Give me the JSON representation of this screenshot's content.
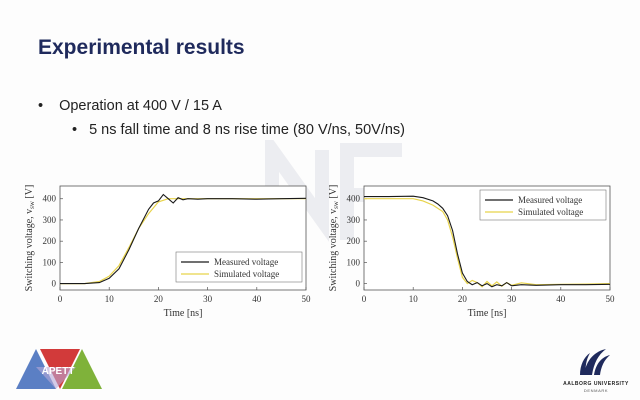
{
  "slide": {
    "title": "Experimental results",
    "bullet_1": "Operation at 400 V / 15 A",
    "bullet_2": "5 ns fall time and 8 ns rise time (80 V/ns, 50V/ns)",
    "bullet_marker": "•"
  },
  "logos": {
    "left_label": "APETT",
    "right_name": "AALBORG UNIVERSITY",
    "right_country": "DENMARK"
  },
  "colors": {
    "title": "#1f2a5c",
    "measured": "#1a1a1a",
    "simulated": "#e8d34a",
    "logo_blue": "#5b7fc4",
    "logo_red": "#d23a3a",
    "logo_green": "#7fb23a"
  },
  "chart_data": [
    {
      "type": "line",
      "title": "",
      "xlabel": "Time [ns]",
      "ylabel": "Switching voltage, v_sw [V]",
      "ylabel_main": "Switching voltage, v",
      "ylabel_sub": "sw",
      "ylabel_unit": " [V]",
      "xlim": [
        0,
        50
      ],
      "ylim": [
        -30,
        460
      ],
      "xticks": [
        0,
        10,
        20,
        30,
        40,
        50
      ],
      "yticks": [
        0,
        100,
        200,
        300,
        400
      ],
      "grid": false,
      "legend_position": "bottom-right",
      "series": [
        {
          "name": "Measured voltage",
          "x": [
            0,
            5,
            8,
            10,
            12,
            14,
            16,
            18,
            19,
            20,
            21,
            22,
            23,
            24,
            25,
            26,
            28,
            30,
            35,
            40,
            45,
            50
          ],
          "y": [
            0,
            0,
            5,
            25,
            70,
            160,
            260,
            350,
            380,
            390,
            420,
            400,
            380,
            405,
            395,
            400,
            398,
            400,
            400,
            398,
            400,
            402
          ]
        },
        {
          "name": "Simulated voltage",
          "x": [
            0,
            5,
            8,
            10,
            12,
            14,
            16,
            18,
            20,
            22,
            24,
            26,
            28,
            30,
            35,
            40,
            45,
            50
          ],
          "y": [
            0,
            0,
            10,
            35,
            85,
            170,
            260,
            330,
            385,
            400,
            400,
            400,
            400,
            400,
            400,
            400,
            400,
            400
          ]
        }
      ]
    },
    {
      "type": "line",
      "title": "",
      "xlabel": "Time [ns]",
      "ylabel": "Switching voltage, v_sw [V]",
      "ylabel_main": "Switching voltage, v",
      "ylabel_sub": "sw",
      "ylabel_unit": " [V]",
      "xlim": [
        0,
        50
      ],
      "ylim": [
        -30,
        460
      ],
      "xticks": [
        0,
        10,
        20,
        30,
        40,
        50
      ],
      "yticks": [
        0,
        100,
        200,
        300,
        400
      ],
      "grid": false,
      "legend_position": "top-right",
      "series": [
        {
          "name": "Measured voltage",
          "x": [
            0,
            5,
            10,
            12,
            14,
            15,
            16,
            17,
            18,
            19,
            20,
            21,
            22,
            23,
            24,
            25,
            26,
            27,
            28,
            29,
            30,
            32,
            35,
            40,
            45,
            50
          ],
          "y": [
            410,
            410,
            412,
            405,
            390,
            375,
            355,
            320,
            250,
            140,
            50,
            10,
            -5,
            5,
            -10,
            0,
            -15,
            -5,
            -10,
            5,
            -10,
            -5,
            -8,
            -5,
            -5,
            -3
          ]
        },
        {
          "name": "Simulated voltage",
          "x": [
            0,
            5,
            10,
            12,
            14,
            16,
            17,
            18,
            19,
            20,
            21,
            22,
            23,
            24,
            25,
            26,
            27,
            28,
            29,
            30,
            32,
            35,
            40,
            45,
            50
          ],
          "y": [
            400,
            400,
            400,
            390,
            370,
            340,
            300,
            220,
            120,
            30,
            0,
            15,
            5,
            -15,
            10,
            -10,
            8,
            -12,
            5,
            -8,
            4,
            -5,
            -3,
            -2,
            0
          ]
        }
      ]
    }
  ]
}
